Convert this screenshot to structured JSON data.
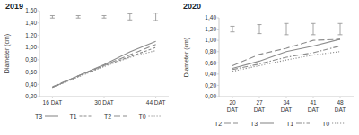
{
  "chart_data": [
    {
      "type": "line",
      "title": "2019",
      "y_label": "Diameter (cm)",
      "categories": [
        "16 DAT",
        null,
        "30 DAT",
        null,
        "44 DAT"
      ],
      "ylim": [
        0.2,
        1.6
      ],
      "yticks": [
        {
          "value": 0.2,
          "label": "0,20"
        },
        {
          "value": 0.4,
          "label": "0,40"
        },
        {
          "value": 0.6,
          "label": "0,60"
        },
        {
          "value": 0.8,
          "label": "0,80"
        },
        {
          "value": 1.0,
          "label": "1,00"
        },
        {
          "value": 1.2,
          "label": "1,20"
        },
        {
          "value": 1.4,
          "label": "1,40"
        },
        {
          "value": 1.6,
          "label": "1,60"
        }
      ],
      "grid": false,
      "legend": "bottom",
      "series": [
        {
          "name": "T3",
          "color": "#8c8c8c",
          "line_style": "solid",
          "values": [
            0.35,
            0.54,
            0.72,
            0.93,
            1.1
          ]
        },
        {
          "name": "T1",
          "color": "#8c8c8c",
          "line_style": "dashed",
          "values": [
            0.35,
            0.53,
            0.7,
            0.85,
            1.0
          ]
        },
        {
          "name": "T2",
          "color": "#8c8c8c",
          "line_style": "longdash",
          "values": [
            0.36,
            0.54,
            0.71,
            0.88,
            1.05
          ]
        },
        {
          "name": "T0",
          "color": "#8c8c8c",
          "line_style": "dotted",
          "values": [
            0.35,
            0.52,
            0.69,
            0.84,
            0.95
          ]
        }
      ],
      "error_bars": {
        "color": "#9a9a9a",
        "y": [
          1.5,
          1.5,
          1.5,
          1.5,
          1.5
        ],
        "error": [
          0.02,
          0.02,
          0.02,
          0.05,
          0.06
        ]
      }
    },
    {
      "type": "line",
      "title": "2020",
      "y_label": "Diameter (cm)",
      "categories": [
        "20 DAT",
        "27 DAT",
        "34 DAT",
        "41 DAT",
        "48 DAT"
      ],
      "ylim": [
        0.0,
        1.4
      ],
      "yticks": [
        {
          "value": 0.0,
          "label": "0,00"
        },
        {
          "value": 0.2,
          "label": "0,20"
        },
        {
          "value": 0.4,
          "label": "0,40"
        },
        {
          "value": 0.6,
          "label": "0,60"
        },
        {
          "value": 0.8,
          "label": "0,80"
        },
        {
          "value": 1.0,
          "label": "1,00"
        },
        {
          "value": 1.2,
          "label": "1,20"
        },
        {
          "value": 1.4,
          "label": "1,40"
        }
      ],
      "grid": false,
      "legend": "bottom",
      "series": [
        {
          "name": "T2",
          "color": "#8c8c8c",
          "line_style": "longdash",
          "values": [
            0.55,
            0.75,
            0.86,
            1.0,
            1.02
          ]
        },
        {
          "name": "T3",
          "color": "#8c8c8c",
          "line_style": "solid",
          "values": [
            0.5,
            0.63,
            0.8,
            0.9,
            1.02
          ]
        },
        {
          "name": "T1",
          "color": "#8c8c8c",
          "line_style": "dashdot",
          "values": [
            0.48,
            0.58,
            0.7,
            0.78,
            0.9
          ]
        },
        {
          "name": "T0",
          "color": "#8c8c8c",
          "line_style": "dotted",
          "values": [
            0.45,
            0.55,
            0.65,
            0.74,
            0.8
          ]
        }
      ],
      "error_bars": {
        "color": "#9a9a9a",
        "y": [
          1.2,
          1.2,
          1.2,
          1.2,
          1.2
        ],
        "error": [
          0.05,
          0.08,
          0.1,
          0.1,
          0.1
        ]
      }
    }
  ]
}
